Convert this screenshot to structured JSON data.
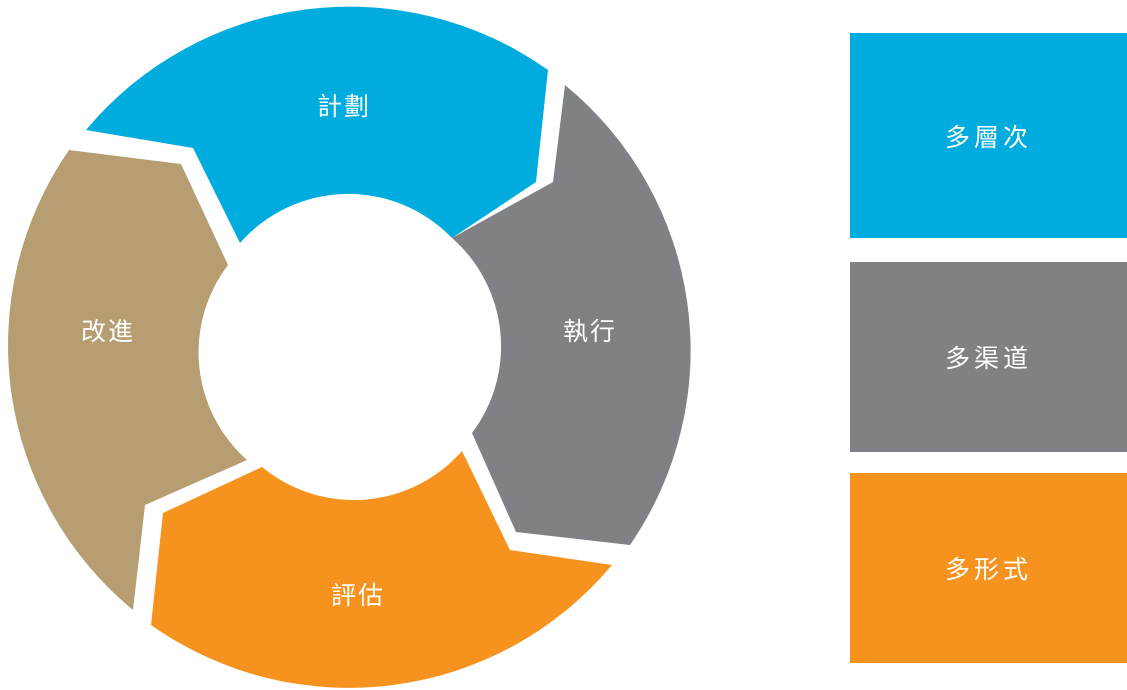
{
  "cycle": {
    "segments": [
      {
        "label": "計劃",
        "color": "#00ABDE"
      },
      {
        "label": "執行",
        "color": "#808184"
      },
      {
        "label": "評估",
        "color": "#F6921E"
      },
      {
        "label": "改進",
        "color": "#B69D72"
      }
    ]
  },
  "boxes": [
    {
      "label": "多層次",
      "color": "#00ABDE"
    },
    {
      "label": "多渠道",
      "color": "#808184"
    },
    {
      "label": "多形式",
      "color": "#F6921E"
    }
  ]
}
